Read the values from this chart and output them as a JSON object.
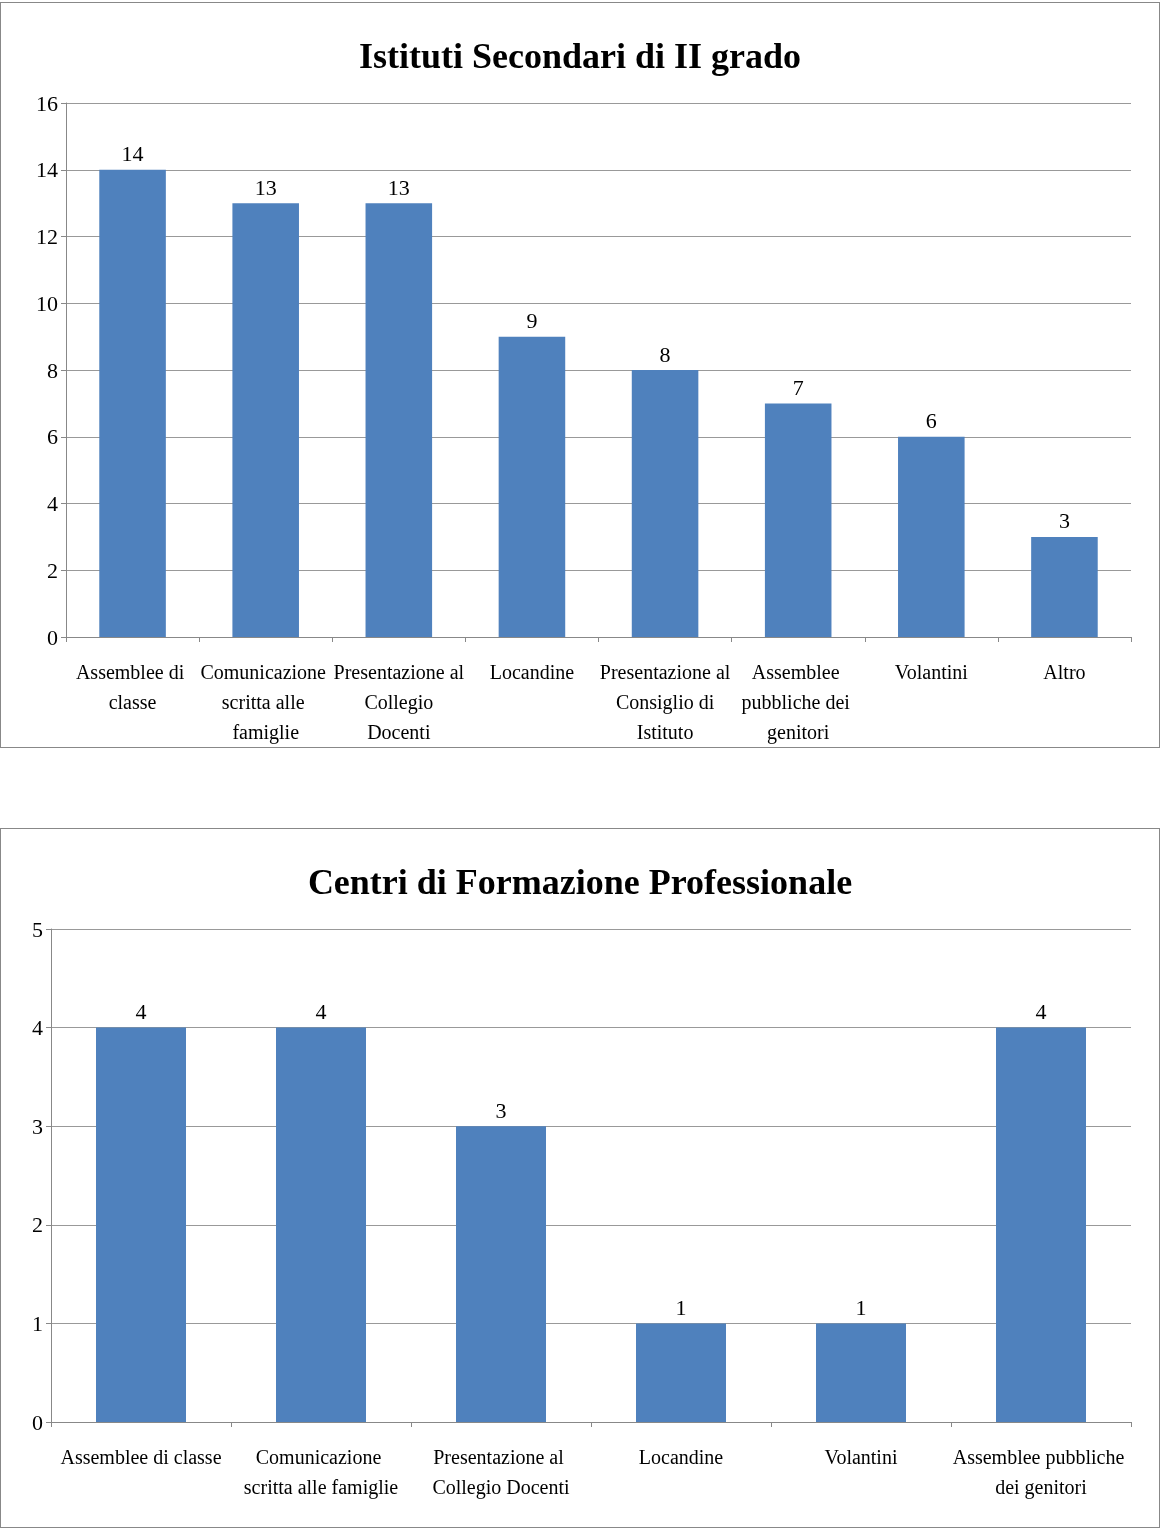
{
  "chart_data": [
    {
      "type": "bar",
      "title": "Istituti Secondari di II grado",
      "categories": [
        "Assemblee di classe",
        "Comunicazione scritta alle famiglie",
        "Presentazione al Collegio Docenti",
        "Locandine",
        "Presentazione al Consiglio di Istituto",
        "Assemblee pubbliche dei genitori",
        "Volantini",
        "Altro"
      ],
      "values": [
        14,
        13,
        13,
        9,
        8,
        7,
        6,
        3
      ],
      "color": "#4f81bd",
      "ylim": [
        0,
        16
      ],
      "yticks": [
        0,
        2,
        4,
        6,
        8,
        10,
        12,
        14,
        16
      ],
      "grid": "y",
      "data_labels": true
    },
    {
      "type": "bar",
      "title": "Centri di Formazione Professionale",
      "categories": [
        "Assemblee di classe",
        "Comunicazione scritta alle famiglie",
        "Presentazione al Collegio Docenti",
        "Locandine",
        "Volantini",
        "Assemblee pubbliche dei genitori"
      ],
      "values": [
        4,
        4,
        3,
        1,
        1,
        4
      ],
      "color": "#4f81bd",
      "ylim": [
        0,
        5
      ],
      "yticks": [
        0,
        1,
        2,
        3,
        4,
        5
      ],
      "grid": "y",
      "data_labels": true
    }
  ]
}
